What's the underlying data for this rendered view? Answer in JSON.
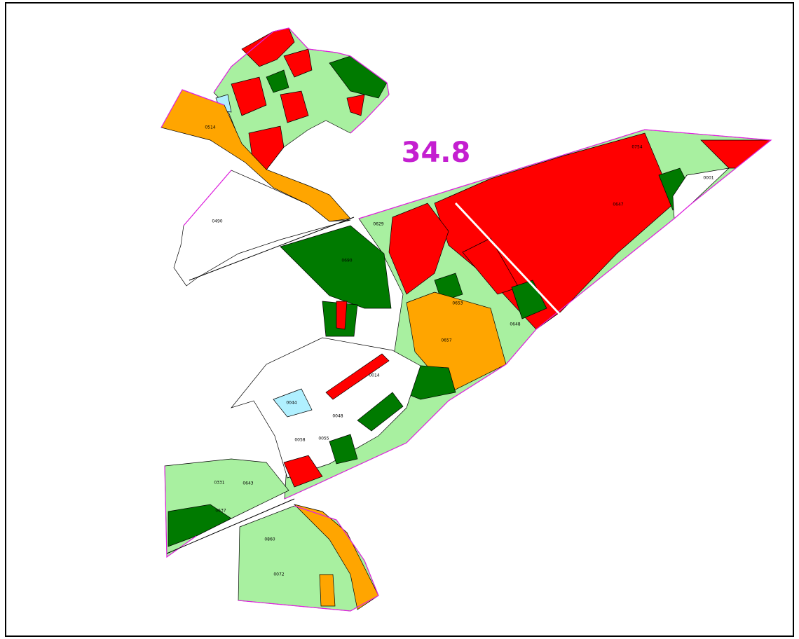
{
  "map": {
    "title": "34.8",
    "parcels": [
      {
        "label": "0514"
      },
      {
        "label": "0490"
      },
      {
        "label": "0690"
      },
      {
        "label": "0657"
      },
      {
        "label": "0647"
      },
      {
        "label": "0014"
      },
      {
        "label": "0048"
      },
      {
        "label": "0044"
      },
      {
        "label": "0055"
      },
      {
        "label": "0058"
      },
      {
        "label": "0331"
      },
      {
        "label": "0643"
      },
      {
        "label": "0637"
      },
      {
        "label": "0653"
      },
      {
        "label": "0754"
      },
      {
        "label": "0001"
      },
      {
        "label": "0629"
      },
      {
        "label": "0648"
      },
      {
        "label": "0072"
      },
      {
        "label": "0860"
      }
    ]
  }
}
